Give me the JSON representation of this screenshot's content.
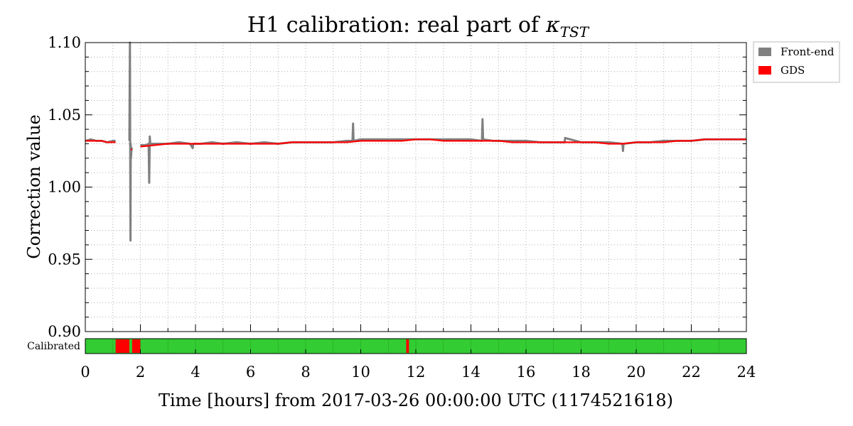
{
  "chart_data": {
    "type": "line",
    "title": "H1 calibration: real part of",
    "title_symbol": "κ",
    "title_subscript": "TST",
    "xlabel": "Time [hours] from 2017-03-26 00:00:00 UTC (1174521618)",
    "ylabel": "Correction value",
    "xlim": [
      0,
      24
    ],
    "ylim": [
      0.9,
      1.1
    ],
    "x_ticks": [
      0,
      2,
      4,
      6,
      8,
      10,
      12,
      14,
      16,
      18,
      20,
      22,
      24
    ],
    "x_tick_labels": [
      "0",
      "2",
      "4",
      "6",
      "8",
      "10",
      "12",
      "14",
      "16",
      "18",
      "20",
      "22",
      "24"
    ],
    "y_ticks": [
      0.9,
      0.95,
      1.0,
      1.05,
      1.1
    ],
    "y_tick_labels": [
      "0.90",
      "0.95",
      "1.00",
      "1.05",
      "1.10"
    ],
    "grid": true,
    "legend_position": "outside-top-right",
    "series": [
      {
        "name": "Front-end",
        "color": "#808080",
        "segments": [
          {
            "x": [
              0.0,
              0.2,
              0.4,
              0.6,
              0.8,
              1.0,
              1.1
            ],
            "y": [
              1.032,
              1.033,
              1.032,
              1.032,
              1.031,
              1.032,
              1.032
            ]
          },
          {
            "x": [
              1.6,
              1.62,
              1.63,
              1.64,
              1.65,
              1.66,
              1.68,
              1.7
            ],
            "y": [
              1.032,
              1.1,
              1.02,
              0.963,
              1.03,
              1.02,
              1.027,
              1.026
            ]
          },
          {
            "x": [
              2.0,
              2.2,
              2.3,
              2.32,
              2.34,
              2.36,
              2.4,
              2.6,
              3.0,
              3.4,
              3.8,
              3.9,
              3.92,
              4.2,
              4.6,
              5.0,
              5.5,
              6.0,
              6.5,
              7.0,
              7.5,
              8.0,
              8.5,
              9.0,
              9.5,
              9.7,
              9.72,
              9.74,
              10.0,
              10.5,
              11.0,
              11.5,
              12.0,
              12.5,
              13.0,
              13.5,
              14.0,
              14.4,
              14.42,
              14.44,
              14.8,
              15.0,
              15.5,
              16.0,
              16.5,
              17.0,
              17.4,
              17.42,
              18.0,
              18.5,
              19.0,
              19.5,
              19.52,
              19.54,
              20.0,
              20.5,
              21.0,
              21.5,
              22.0,
              22.5,
              23.0,
              23.5,
              24.0
            ],
            "y": [
              1.029,
              1.029,
              1.03,
              1.003,
              1.035,
              1.03,
              1.03,
              1.03,
              1.03,
              1.031,
              1.03,
              1.027,
              1.03,
              1.03,
              1.031,
              1.03,
              1.031,
              1.03,
              1.031,
              1.03,
              1.031,
              1.031,
              1.031,
              1.031,
              1.032,
              1.032,
              1.044,
              1.032,
              1.033,
              1.033,
              1.033,
              1.033,
              1.033,
              1.033,
              1.033,
              1.033,
              1.033,
              1.032,
              1.047,
              1.033,
              1.032,
              1.032,
              1.032,
              1.032,
              1.031,
              1.031,
              1.031,
              1.034,
              1.031,
              1.031,
              1.031,
              1.03,
              1.025,
              1.03,
              1.031,
              1.031,
              1.032,
              1.032,
              1.032,
              1.033,
              1.033,
              1.033,
              1.033
            ]
          }
        ]
      },
      {
        "name": "GDS",
        "color": "#ff0000",
        "segments": [
          {
            "x": [
              0.0,
              0.2,
              0.4,
              0.6,
              0.8,
              1.0,
              1.1
            ],
            "y": [
              1.032,
              1.032,
              1.032,
              1.032,
              1.031,
              1.031,
              1.031
            ]
          },
          {
            "x": [
              1.65,
              1.7
            ],
            "y": [
              1.026,
              1.026
            ]
          },
          {
            "x": [
              2.0,
              2.5,
              3.0,
              3.5,
              4.0,
              4.5,
              5.0,
              5.5,
              6.0,
              6.5,
              7.0,
              7.5,
              8.0,
              8.5,
              9.0,
              9.5,
              10.0,
              10.5,
              11.0,
              11.5,
              12.0,
              12.5,
              13.0,
              13.5,
              14.0,
              14.5,
              15.0,
              15.5,
              16.0,
              16.5,
              17.0,
              17.5,
              18.0,
              18.5,
              19.0,
              19.5,
              20.0,
              20.5,
              21.0,
              21.5,
              22.0,
              22.5,
              23.0,
              23.5,
              24.0
            ],
            "y": [
              1.028,
              1.029,
              1.03,
              1.03,
              1.03,
              1.03,
              1.03,
              1.03,
              1.03,
              1.03,
              1.03,
              1.031,
              1.031,
              1.031,
              1.031,
              1.031,
              1.032,
              1.032,
              1.032,
              1.032,
              1.033,
              1.033,
              1.032,
              1.032,
              1.032,
              1.032,
              1.032,
              1.031,
              1.031,
              1.031,
              1.031,
              1.031,
              1.031,
              1.031,
              1.03,
              1.03,
              1.031,
              1.031,
              1.031,
              1.032,
              1.032,
              1.033,
              1.033,
              1.033,
              1.033
            ]
          }
        ]
      }
    ],
    "state_strip": {
      "label": "Calibrated",
      "good_color": "#33cc33",
      "bad_color": "#ff0000",
      "edge_color": "#1a7f1a",
      "bad_intervals": [
        [
          1.1,
          1.6
        ],
        [
          1.7,
          2.0
        ],
        [
          11.65,
          11.75
        ]
      ]
    }
  }
}
